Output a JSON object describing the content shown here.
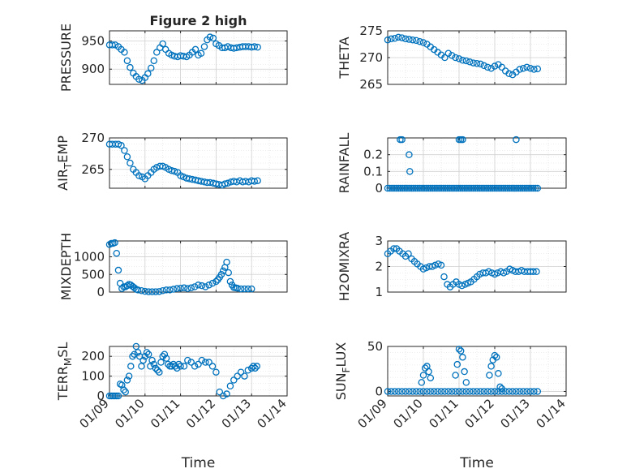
{
  "chart_data": [
    {
      "id": "pressure",
      "type": "scatter",
      "title": "Figure 2 high",
      "ylabel": {
        "base": "PRESSURE"
      },
      "xlabel": "",
      "xlim": [
        0,
        5
      ],
      "ylim": [
        873,
        968
      ],
      "yticks": [
        900,
        950
      ],
      "ytick_labels": [
        "900",
        "950"
      ],
      "xtick_labels": [],
      "x": [
        0.0,
        0.08,
        0.16,
        0.25,
        0.33,
        0.42,
        0.5,
        0.58,
        0.67,
        0.75,
        0.83,
        0.92,
        1.0,
        1.08,
        1.17,
        1.25,
        1.33,
        1.42,
        1.5,
        1.58,
        1.67,
        1.75,
        1.83,
        1.92,
        2.0,
        2.08,
        2.17,
        2.25,
        2.33,
        2.42,
        2.5,
        2.58,
        2.67,
        2.75,
        2.83,
        2.92,
        3.0,
        3.08,
        3.17,
        3.25,
        3.33,
        3.42,
        3.5,
        3.58,
        3.67,
        3.75,
        3.83,
        3.92,
        4.0,
        4.08,
        4.17
      ],
      "y": [
        943,
        943,
        943,
        940,
        935,
        930,
        915,
        903,
        893,
        887,
        882,
        880,
        885,
        892,
        902,
        915,
        930,
        938,
        945,
        935,
        928,
        925,
        923,
        922,
        924,
        923,
        922,
        925,
        930,
        935,
        925,
        928,
        940,
        952,
        957,
        955,
        945,
        942,
        938,
        938,
        940,
        938,
        937,
        938,
        939,
        940,
        940,
        940,
        939,
        940,
        939
      ]
    },
    {
      "id": "theta",
      "type": "scatter",
      "title": "",
      "ylabel": {
        "base": "THETA"
      },
      "xlabel": "",
      "xlim": [
        0,
        5
      ],
      "ylim": [
        265,
        275
      ],
      "yticks": [
        265,
        270,
        275
      ],
      "ytick_labels": [
        "265",
        "270",
        "275"
      ],
      "xtick_labels": [],
      "x": [
        0.0,
        0.1,
        0.2,
        0.3,
        0.4,
        0.5,
        0.6,
        0.7,
        0.8,
        0.9,
        1.0,
        1.1,
        1.2,
        1.3,
        1.4,
        1.5,
        1.6,
        1.7,
        1.8,
        1.9,
        2.0,
        2.1,
        2.2,
        2.3,
        2.4,
        2.5,
        2.6,
        2.7,
        2.8,
        2.9,
        3.0,
        3.1,
        3.2,
        3.3,
        3.4,
        3.5,
        3.6,
        3.7,
        3.8,
        3.9,
        4.0,
        4.1,
        4.2
      ],
      "y": [
        273.3,
        273.5,
        273.6,
        273.8,
        273.7,
        273.5,
        273.4,
        273.3,
        273.2,
        273.0,
        272.8,
        272.5,
        272.0,
        271.5,
        271.0,
        270.5,
        270.0,
        270.8,
        270.4,
        270.0,
        269.8,
        269.5,
        269.4,
        269.2,
        269.0,
        268.9,
        268.8,
        268.5,
        268.2,
        268.0,
        268.4,
        268.7,
        268.2,
        267.5,
        267.0,
        266.8,
        267.3,
        267.8,
        268.0,
        268.2,
        268.0,
        267.8,
        267.9
      ]
    },
    {
      "id": "air_temp",
      "type": "scatter",
      "title": "",
      "ylabel": {
        "base": "AIR",
        "sub": "T",
        "rest": "EMP"
      },
      "xlabel": "",
      "xlim": [
        0,
        5
      ],
      "ylim": [
        262,
        270
      ],
      "yticks": [
        265,
        270
      ],
      "ytick_labels": [
        "265",
        "270"
      ],
      "xtick_labels": [],
      "x": [
        0.0,
        0.08,
        0.17,
        0.25,
        0.33,
        0.42,
        0.5,
        0.58,
        0.67,
        0.75,
        0.83,
        0.92,
        1.0,
        1.08,
        1.17,
        1.25,
        1.33,
        1.42,
        1.5,
        1.58,
        1.67,
        1.75,
        1.83,
        1.92,
        2.0,
        2.08,
        2.17,
        2.25,
        2.33,
        2.42,
        2.5,
        2.58,
        2.67,
        2.75,
        2.83,
        2.92,
        3.0,
        3.08,
        3.17,
        3.25,
        3.33,
        3.42,
        3.5,
        3.58,
        3.67,
        3.75,
        3.83,
        3.92,
        4.0,
        4.08,
        4.17
      ],
      "y": [
        269,
        269,
        269,
        269,
        268.8,
        268,
        267,
        266,
        265,
        264.5,
        264,
        263.8,
        263.5,
        264,
        264.5,
        265,
        265.3,
        265.5,
        265.5,
        265.3,
        265,
        264.8,
        264.7,
        264.5,
        264,
        263.8,
        263.6,
        263.5,
        263.4,
        263.3,
        263.2,
        263.1,
        263,
        262.9,
        262.9,
        262.8,
        262.7,
        262.6,
        262.5,
        262.7,
        262.8,
        263,
        263.1,
        263,
        263.2,
        263,
        263.1,
        263.0,
        263.2,
        263.1,
        263.2
      ]
    },
    {
      "id": "rainfall",
      "type": "scatter",
      "title": "",
      "ylabel": {
        "base": "RAINFALL"
      },
      "xlabel": "",
      "xlim": [
        0,
        5
      ],
      "ylim": [
        0,
        0.3
      ],
      "yticks": [
        0,
        0.1,
        0.2
      ],
      "ytick_labels": [
        "0",
        "0.1",
        "0.2"
      ],
      "xtick_labels": [],
      "x": [
        0.0,
        0.06,
        0.12,
        0.18,
        0.24,
        0.3,
        0.36,
        0.42,
        0.48,
        0.54,
        0.6,
        0.66,
        0.72,
        0.78,
        0.84,
        0.9,
        0.96,
        1.02,
        1.08,
        1.14,
        1.2,
        1.26,
        1.32,
        1.38,
        1.44,
        1.5,
        1.56,
        1.62,
        1.68,
        1.74,
        1.8,
        1.86,
        1.92,
        1.98,
        2.04,
        2.1,
        2.16,
        2.22,
        2.28,
        2.34,
        2.4,
        2.46,
        2.52,
        2.58,
        2.64,
        2.7,
        2.76,
        2.82,
        2.88,
        2.94,
        3.0,
        3.06,
        3.12,
        3.18,
        3.24,
        3.3,
        3.36,
        3.42,
        3.48,
        3.54,
        3.6,
        3.66,
        3.72,
        3.78,
        3.84,
        3.9,
        3.96,
        4.02,
        4.08,
        4.14,
        4.2,
        0.35,
        0.4,
        0.6,
        0.62,
        2.0,
        2.05,
        2.1,
        3.6
      ],
      "y": [
        0,
        0,
        0,
        0,
        0,
        0,
        0,
        0,
        0,
        0,
        0,
        0,
        0,
        0,
        0,
        0,
        0,
        0,
        0,
        0,
        0,
        0,
        0,
        0,
        0,
        0,
        0,
        0,
        0,
        0,
        0,
        0,
        0,
        0,
        0,
        0,
        0,
        0,
        0,
        0,
        0,
        0,
        0,
        0,
        0,
        0,
        0,
        0,
        0,
        0,
        0,
        0,
        0,
        0,
        0,
        0,
        0,
        0,
        0,
        0,
        0,
        0,
        0,
        0,
        0,
        0,
        0,
        0,
        0,
        0,
        0,
        0.29,
        0.29,
        0.2,
        0.1,
        0.29,
        0.29,
        0.29,
        0.29
      ]
    },
    {
      "id": "mixdepth",
      "type": "scatter",
      "title": "",
      "ylabel": {
        "base": "MIXDEPTH"
      },
      "xlabel": "",
      "xlim": [
        0,
        5
      ],
      "ylim": [
        0,
        1450
      ],
      "yticks": [
        0,
        500,
        1000
      ],
      "ytick_labels": [
        "0",
        "500",
        "1000"
      ],
      "xtick_labels": [],
      "x": [
        0.0,
        0.05,
        0.1,
        0.15,
        0.2,
        0.25,
        0.3,
        0.35,
        0.4,
        0.45,
        0.5,
        0.55,
        0.6,
        0.65,
        0.7,
        0.75,
        0.8,
        0.9,
        1.0,
        1.1,
        1.2,
        1.3,
        1.4,
        1.5,
        1.6,
        1.7,
        1.8,
        1.9,
        2.0,
        2.1,
        2.2,
        2.3,
        2.4,
        2.5,
        2.6,
        2.7,
        2.8,
        2.9,
        3.0,
        3.05,
        3.1,
        3.15,
        3.2,
        3.25,
        3.3,
        3.35,
        3.4,
        3.45,
        3.5,
        3.55,
        3.6,
        3.7,
        3.8,
        3.9,
        4.0
      ],
      "y": [
        1350,
        1380,
        1380,
        1400,
        1100,
        620,
        250,
        100,
        150,
        150,
        180,
        220,
        200,
        160,
        120,
        80,
        60,
        40,
        20,
        10,
        10,
        10,
        15,
        40,
        60,
        60,
        80,
        100,
        110,
        120,
        100,
        120,
        150,
        200,
        180,
        150,
        200,
        250,
        300,
        350,
        420,
        500,
        600,
        700,
        850,
        550,
        300,
        200,
        130,
        120,
        110,
        90,
        90,
        90,
        90
      ]
    },
    {
      "id": "h2omixra",
      "type": "scatter",
      "title": "",
      "ylabel": {
        "base": "H2OMIXRA"
      },
      "xlabel": "",
      "xlim": [
        0,
        5
      ],
      "ylim": [
        1,
        3
      ],
      "yticks": [
        1,
        2,
        3
      ],
      "ytick_labels": [
        "1",
        "2",
        "3"
      ],
      "xtick_labels": [],
      "x": [
        0.0,
        0.08,
        0.17,
        0.25,
        0.33,
        0.42,
        0.5,
        0.58,
        0.67,
        0.75,
        0.83,
        0.92,
        1.0,
        1.08,
        1.17,
        1.25,
        1.33,
        1.42,
        1.5,
        1.58,
        1.67,
        1.75,
        1.83,
        1.92,
        2.0,
        2.08,
        2.17,
        2.25,
        2.33,
        2.42,
        2.5,
        2.58,
        2.67,
        2.75,
        2.83,
        2.92,
        3.0,
        3.08,
        3.17,
        3.25,
        3.33,
        3.42,
        3.5,
        3.58,
        3.67,
        3.75,
        3.83,
        3.92,
        4.0,
        4.08,
        4.17
      ],
      "y": [
        2.5,
        2.6,
        2.7,
        2.7,
        2.6,
        2.5,
        2.4,
        2.5,
        2.3,
        2.2,
        2.1,
        2.0,
        1.9,
        1.95,
        2.0,
        2.0,
        2.05,
        2.1,
        2.05,
        1.6,
        1.3,
        1.2,
        1.3,
        1.4,
        1.3,
        1.25,
        1.3,
        1.35,
        1.4,
        1.5,
        1.6,
        1.7,
        1.75,
        1.75,
        1.8,
        1.75,
        1.7,
        1.75,
        1.8,
        1.75,
        1.8,
        1.9,
        1.85,
        1.8,
        1.8,
        1.85,
        1.8,
        1.8,
        1.8,
        1.8,
        1.8
      ]
    },
    {
      "id": "terr_msl",
      "type": "scatter",
      "title": "",
      "ylabel": {
        "base": "TERR",
        "sub": "M",
        "rest": "SL"
      },
      "xlabel": "Time",
      "xlim": [
        0,
        5
      ],
      "ylim": [
        0,
        250
      ],
      "yticks": [
        0,
        100,
        200
      ],
      "ytick_labels": [
        "0",
        "100",
        "200"
      ],
      "xtick_labels": [
        "01/09",
        "01/10",
        "01/11",
        "01/12",
        "01/13",
        "01/14"
      ],
      "x": [
        0.0,
        0.05,
        0.1,
        0.15,
        0.2,
        0.25,
        0.3,
        0.35,
        0.4,
        0.45,
        0.5,
        0.55,
        0.6,
        0.65,
        0.7,
        0.75,
        0.8,
        0.85,
        0.9,
        0.95,
        1.0,
        1.05,
        1.1,
        1.15,
        1.2,
        1.25,
        1.3,
        1.35,
        1.4,
        1.45,
        1.5,
        1.55,
        1.6,
        1.65,
        1.7,
        1.75,
        1.8,
        1.85,
        1.9,
        1.95,
        2.0,
        2.1,
        2.2,
        2.3,
        2.4,
        2.5,
        2.6,
        2.7,
        2.8,
        2.9,
        3.0,
        3.1,
        3.2,
        3.3,
        3.4,
        3.5,
        3.6,
        3.7,
        3.8,
        3.9,
        4.0,
        4.05,
        4.1,
        4.15
      ],
      "y": [
        0,
        0,
        0,
        0,
        0,
        0,
        60,
        55,
        30,
        20,
        80,
        100,
        150,
        200,
        210,
        250,
        220,
        200,
        150,
        180,
        200,
        220,
        210,
        150,
        180,
        160,
        140,
        130,
        120,
        170,
        200,
        210,
        190,
        160,
        150,
        150,
        160,
        150,
        140,
        160,
        150,
        150,
        180,
        170,
        150,
        160,
        180,
        170,
        170,
        150,
        120,
        20,
        0,
        10,
        50,
        80,
        100,
        120,
        100,
        130,
        140,
        150,
        140,
        150
      ]
    },
    {
      "id": "sun_flux",
      "type": "scatter",
      "title": "",
      "ylabel": {
        "base": "SUN",
        "sub": "F",
        "rest": "LUX"
      },
      "xlabel": "Time",
      "xlim": [
        0,
        5
      ],
      "ylim": [
        -5,
        50
      ],
      "yticks": [
        0,
        50
      ],
      "ytick_labels": [
        "0",
        "50"
      ],
      "xtick_labels": [
        "01/09",
        "01/10",
        "01/11",
        "01/12",
        "01/13",
        "01/14"
      ],
      "x": [
        0.0,
        0.1,
        0.2,
        0.3,
        0.4,
        0.5,
        0.6,
        0.7,
        0.8,
        0.9,
        1.0,
        1.1,
        1.2,
        1.3,
        1.4,
        1.5,
        1.6,
        1.7,
        1.8,
        1.9,
        2.0,
        2.1,
        2.2,
        2.3,
        2.4,
        2.5,
        2.6,
        2.7,
        2.8,
        2.9,
        3.0,
        3.1,
        3.2,
        3.3,
        3.4,
        3.5,
        3.6,
        3.7,
        3.8,
        3.9,
        4.0,
        4.1,
        4.2,
        0.95,
        1.0,
        1.05,
        1.1,
        1.15,
        1.2,
        1.9,
        1.95,
        2.0,
        2.05,
        2.1,
        2.15,
        2.2,
        2.85,
        2.9,
        2.95,
        3.0,
        3.05,
        3.1,
        3.15,
        3.2
      ],
      "y": [
        0,
        0,
        0,
        0,
        0,
        0,
        0,
        0,
        0,
        0,
        0,
        0,
        0,
        0,
        0,
        0,
        0,
        0,
        0,
        0,
        0,
        0,
        0,
        0,
        0,
        0,
        0,
        0,
        0,
        0,
        0,
        0,
        0,
        0,
        0,
        0,
        0,
        0,
        0,
        0,
        0,
        0,
        0,
        10,
        18,
        26,
        28,
        22,
        15,
        18,
        30,
        47,
        45,
        38,
        22,
        10,
        18,
        28,
        35,
        40,
        38,
        20,
        5,
        3
      ]
    }
  ]
}
